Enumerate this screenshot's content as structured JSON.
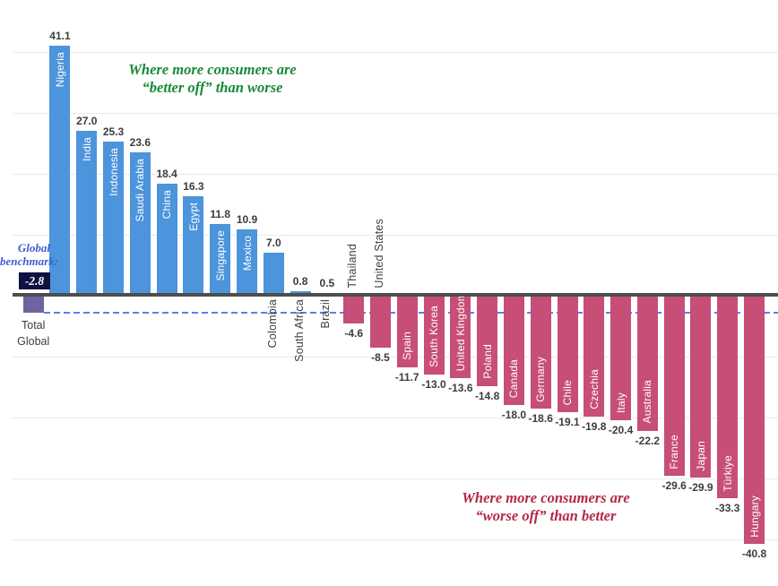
{
  "chart_data": {
    "type": "bar",
    "title": "",
    "ylim": [
      -48,
      48
    ],
    "grid": true,
    "gridlines": [
      40,
      30,
      20,
      10,
      -10,
      -20,
      -30,
      -40
    ],
    "annotations": {
      "positive": {
        "line1": "Where more consumers are",
        "line2": "“better off” than worse"
      },
      "negative": {
        "line1": "Where more consumers are",
        "line2": "“worse off” than better"
      }
    },
    "benchmark": {
      "label_line1": "Global",
      "label_line2": "benchmark:",
      "value": -2.8,
      "value_text": "-2.8"
    },
    "bars": [
      {
        "name": "Total Global",
        "value": -2.8,
        "group": "total",
        "label": "below-horizontal"
      },
      {
        "name": "Nigeria",
        "value": 41.1,
        "group": "positive",
        "label": "inside"
      },
      {
        "name": "India",
        "value": 27.0,
        "group": "positive",
        "label": "inside"
      },
      {
        "name": "Indonesia",
        "value": 25.3,
        "group": "positive",
        "label": "inside"
      },
      {
        "name": "Saudi Arabia",
        "value": 23.6,
        "group": "positive",
        "label": "inside"
      },
      {
        "name": "China",
        "value": 18.4,
        "group": "positive",
        "label": "inside"
      },
      {
        "name": "Egypt",
        "value": 16.3,
        "group": "positive",
        "label": "inside"
      },
      {
        "name": "Singapore",
        "value": 11.8,
        "group": "positive",
        "label": "inside"
      },
      {
        "name": "Mexico",
        "value": 10.9,
        "group": "positive",
        "label": "inside"
      },
      {
        "name": "Colombia",
        "value": 7.0,
        "group": "positive",
        "label": "below-axis"
      },
      {
        "name": "South Africa",
        "value": 0.8,
        "group": "positive",
        "label": "below-axis"
      },
      {
        "name": "Brazil",
        "value": 0.5,
        "group": "positive",
        "label": "below-axis"
      },
      {
        "name": "Thailand",
        "value": -4.6,
        "group": "negative",
        "label": "above-axis"
      },
      {
        "name": "United States",
        "value": -8.5,
        "group": "negative",
        "label": "above-axis"
      },
      {
        "name": "Spain",
        "value": -11.7,
        "group": "negative",
        "label": "inside"
      },
      {
        "name": "South Korea",
        "value": -13.0,
        "group": "negative",
        "label": "inside"
      },
      {
        "name": "United Kingdom",
        "value": -13.6,
        "group": "negative",
        "label": "inside"
      },
      {
        "name": "Poland",
        "value": -14.8,
        "group": "negative",
        "label": "inside"
      },
      {
        "name": "Canada",
        "value": -18.0,
        "group": "negative",
        "label": "inside"
      },
      {
        "name": "Germany",
        "value": -18.6,
        "group": "negative",
        "label": "inside"
      },
      {
        "name": "Chile",
        "value": -19.1,
        "group": "negative",
        "label": "inside"
      },
      {
        "name": "Czechia",
        "value": -19.8,
        "group": "negative",
        "label": "inside"
      },
      {
        "name": "Italy",
        "value": -20.4,
        "group": "negative",
        "label": "inside"
      },
      {
        "name": "Australia",
        "value": -22.2,
        "group": "negative",
        "label": "inside"
      },
      {
        "name": "France",
        "value": -29.6,
        "group": "negative",
        "label": "inside"
      },
      {
        "name": "Japan",
        "value": -29.9,
        "group": "negative",
        "label": "inside"
      },
      {
        "name": "Türkiye",
        "value": -33.3,
        "group": "negative",
        "label": "inside"
      },
      {
        "name": "Hungary",
        "value": -40.8,
        "group": "negative",
        "label": "inside"
      }
    ],
    "colors": {
      "positive_bar": "#4C94DB",
      "negative_bar": "#C74E76",
      "total_bar": "#6F63A0",
      "benchmark_box": "#0E1240",
      "benchmark_text": "#3D5FD3",
      "dashed_line": "#5A80E8",
      "positive_annotation": "#178A38",
      "negative_annotation": "#B2284A",
      "zero_line": "#4D4D4D",
      "gridline": "#E9E9E9",
      "value_label": "#3C3C3C",
      "country_label_outside": "#3E3E3E",
      "country_label_inside": "#FFFFFF"
    }
  }
}
